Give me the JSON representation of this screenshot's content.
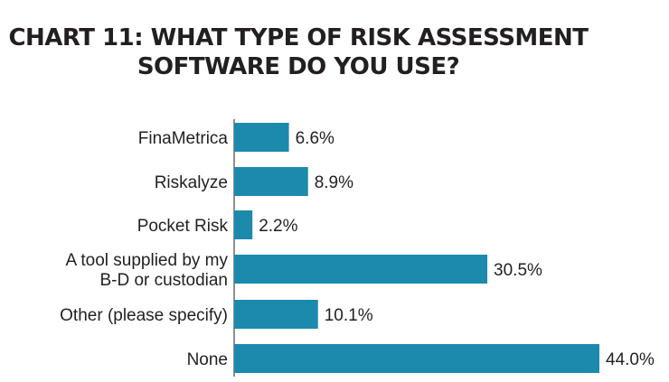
{
  "title_lines": [
    "CHART 11:  WHAT TYPE OF RISK ASSESSMENT",
    "SOFTWARE DO YOU USE?"
  ],
  "colors": {
    "bar": "#1b8aad",
    "axis": "#231f20",
    "text": "#231f20"
  },
  "chart_data": {
    "type": "bar",
    "orientation": "horizontal",
    "title": "CHART 11:  WHAT TYPE OF RISK ASSESSMENT SOFTWARE DO YOU USE?",
    "categories": [
      [
        "FinaMetrica"
      ],
      [
        "Riskalyze"
      ],
      [
        "Pocket Risk"
      ],
      [
        "A tool supplied by my",
        "B-D or custodian"
      ],
      [
        "Other (please specify)"
      ],
      [
        "None"
      ]
    ],
    "values": [
      6.6,
      8.9,
      2.2,
      30.5,
      10.1,
      44.0
    ],
    "value_labels": [
      "6.6%",
      "8.9%",
      "2.2%",
      "30.5%",
      "10.1%",
      "44.0%"
    ],
    "unit": "%",
    "xlim": [
      0,
      44.0
    ],
    "grid": false,
    "legend": "none"
  }
}
